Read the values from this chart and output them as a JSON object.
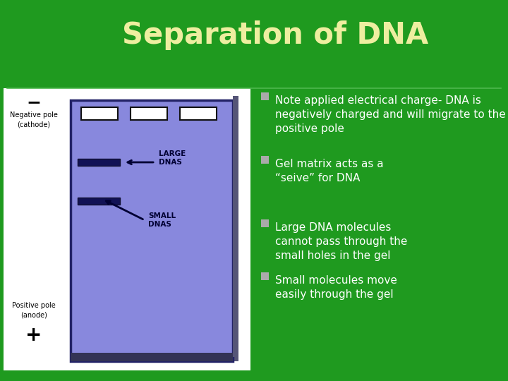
{
  "title": "Separation of DNA",
  "title_color": "#eeeea0",
  "title_fontsize": 30,
  "bg_color": "#1f9a1f",
  "divider_color": "#4db84d",
  "left_panel_bg": "#ffffff",
  "gel_bg": "#8888dd",
  "gel_border": "#222266",
  "bullet_color": "#ffffff",
  "bullets": [
    "Note applied electrical charge- DNA is\nnegatively charged and will migrate to the\npositive pole",
    "Gel matrix acts as a\n“seive” for DNA",
    "Large DNA molecules\ncannot pass through the\nsmall holes in the gel",
    "Small molecules move\neasily through the gel"
  ],
  "neg_pole_label": "Negative pole\n(cathode)",
  "pos_pole_label": "Positive pole\n(anode)",
  "neg_symbol": "−",
  "pos_symbol": "+",
  "large_dnas_label": "LARGE\nDNAS",
  "small_dnas_label": "SMALL\nDNAS",
  "label_color": "#000033",
  "bullet_fontsize": 11,
  "annotation_fontsize": 8
}
